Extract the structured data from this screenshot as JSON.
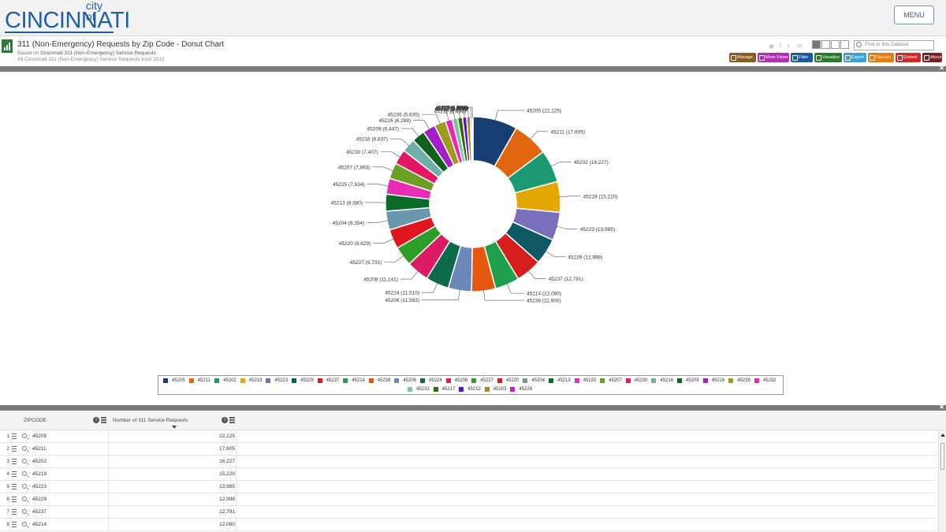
{
  "header": {
    "logo_city_of": "city of",
    "logo_cincinnati": "CINCINNATI",
    "menu_label": "MENU"
  },
  "dataset": {
    "title": "311 (Non-Emergency) Requests by Zip Code - Donut Chart",
    "based_on_prefix": "Based on",
    "based_on_link": "Cincinnati 311 (Non-Emergency) Service Requests",
    "description": "All Cincinnati 311 (Non-Emergency) Service Requests from 2012",
    "search_placeholder": "Find in this Dataset",
    "share_icons": [
      "rss-icon",
      "facebook-icon",
      "twitter-icon",
      "email-icon"
    ]
  },
  "actions": [
    {
      "label": "Manage",
      "color": "#8a5a22",
      "icon": "gear-icon"
    },
    {
      "label": "More Views",
      "color": "#b02fb5",
      "icon": "views-icon"
    },
    {
      "label": "Filter",
      "color": "#1b5c9c",
      "icon": "filter-icon"
    },
    {
      "label": "Visualize",
      "color": "#2b7a2b",
      "icon": "chart-icon"
    },
    {
      "label": "Export",
      "color": "#3aa2d8",
      "icon": "export-icon"
    },
    {
      "label": "Discuss",
      "color": "#e77a12",
      "icon": "comment-icon"
    },
    {
      "label": "Embed",
      "color": "#cf2a2a",
      "icon": "embed-icon"
    },
    {
      "label": "About",
      "color": "#7d2020",
      "icon": "info-icon"
    }
  ],
  "chart_data": {
    "type": "pie",
    "subtype": "donut",
    "legend_placement": "bottom",
    "slices": [
      {
        "label": "45205",
        "value": 22125,
        "color": "#163e70"
      },
      {
        "label": "45211",
        "value": 17605,
        "color": "#e0660f"
      },
      {
        "label": "45202",
        "value": 16227,
        "color": "#1e9a72"
      },
      {
        "label": "45219",
        "value": 15220,
        "color": "#e4a704"
      },
      {
        "label": "45223",
        "value": 13985,
        "color": "#7a6fbb"
      },
      {
        "label": "45229",
        "value": 12998,
        "color": "#0e5963"
      },
      {
        "label": "45237",
        "value": 12791,
        "color": "#d61e1e"
      },
      {
        "label": "45214",
        "value": 12080,
        "color": "#1fa04a"
      },
      {
        "label": "45238",
        "value": 11900,
        "color": "#e4570e"
      },
      {
        "label": "45206",
        "value": 11583,
        "color": "#6c87b8"
      },
      {
        "label": "45224",
        "value": 11510,
        "color": "#0c6a4b"
      },
      {
        "label": "45208",
        "value": 11141,
        "color": "#db1b63"
      },
      {
        "label": "45227",
        "value": 9731,
        "color": "#2d9e2a"
      },
      {
        "label": "45220",
        "value": 9629,
        "color": "#e0161f"
      },
      {
        "label": "45204",
        "value": 9354,
        "color": "#6898ae"
      },
      {
        "label": "45213",
        "value": 8380,
        "color": "#0a6a28"
      },
      {
        "label": "45225",
        "value": 7934,
        "color": "#e72cb6"
      },
      {
        "label": "45207",
        "value": 7893,
        "color": "#6c9e24"
      },
      {
        "label": "45230",
        "value": 7407,
        "color": "#e51662"
      },
      {
        "label": "45216",
        "value": 6837,
        "color": "#6fafa8"
      },
      {
        "label": "45209",
        "value": 6447,
        "color": "#11611c"
      },
      {
        "label": "45226",
        "value": 6288,
        "color": "#a51fc8"
      },
      {
        "label": "45239",
        "value": 5635,
        "color": "#9d9a1c"
      },
      {
        "label": "45232",
        "value": 3436,
        "color": "#ec25b7"
      },
      {
        "label": "45233",
        "value": 2711,
        "color": "#7fc2a3"
      },
      {
        "label": "45217",
        "value": 2408,
        "color": "#2e6a0c"
      },
      {
        "label": "45212",
        "value": 2049,
        "color": "#5a11cc"
      },
      {
        "label": "45203",
        "value": 1834,
        "color": "#a6852b"
      },
      {
        "label": "45228",
        "value": 758,
        "color": "#c422c9"
      },
      {
        "label": "Other",
        "value": 551,
        "color": "#8a8a8a"
      }
    ],
    "slice_label_texts": [
      "45205 (22,125)",
      "45211 (17,605)",
      "45202 (16,227)",
      "45219 (15,220)",
      "45223 (13,985)",
      "45229 (12,998)",
      "45237 (12,791)",
      "45214 (12,080)",
      "45238 (11,900)",
      "45206 (11,583)",
      "45224 (11,510)",
      "45208 (11,141)",
      "45227 (9,731)",
      "45220 (9,629)",
      "45204 (9,354)",
      "45213 (8,380)",
      "45225 (7,934)",
      "45207 (7,893)",
      "45230 (7,407)",
      "45216 (6,837)",
      "45209 (6,447)",
      "45226 (6,288)",
      "45239 (5,635)",
      "45232 (3,436)",
      "45233 (2,711)",
      "45217 (2,408)",
      "45212 (2,049)",
      "45203 (1,834)",
      "45228 (758)",
      "Other (551)"
    ]
  },
  "table": {
    "columns": [
      "ZIPCODE",
      "Number of 311 Service Requests"
    ],
    "rows": [
      {
        "num": "1",
        "zip": "45205",
        "count": "22,125"
      },
      {
        "num": "2",
        "zip": "45211",
        "count": "17,605"
      },
      {
        "num": "3",
        "zip": "45202",
        "count": "16,227"
      },
      {
        "num": "4",
        "zip": "45219",
        "count": "15,220"
      },
      {
        "num": "5",
        "zip": "45223",
        "count": "13,985"
      },
      {
        "num": "6",
        "zip": "45229",
        "count": "12,998"
      },
      {
        "num": "7",
        "zip": "45237",
        "count": "12,791"
      },
      {
        "num": "8",
        "zip": "45214",
        "count": "12,080"
      }
    ]
  }
}
